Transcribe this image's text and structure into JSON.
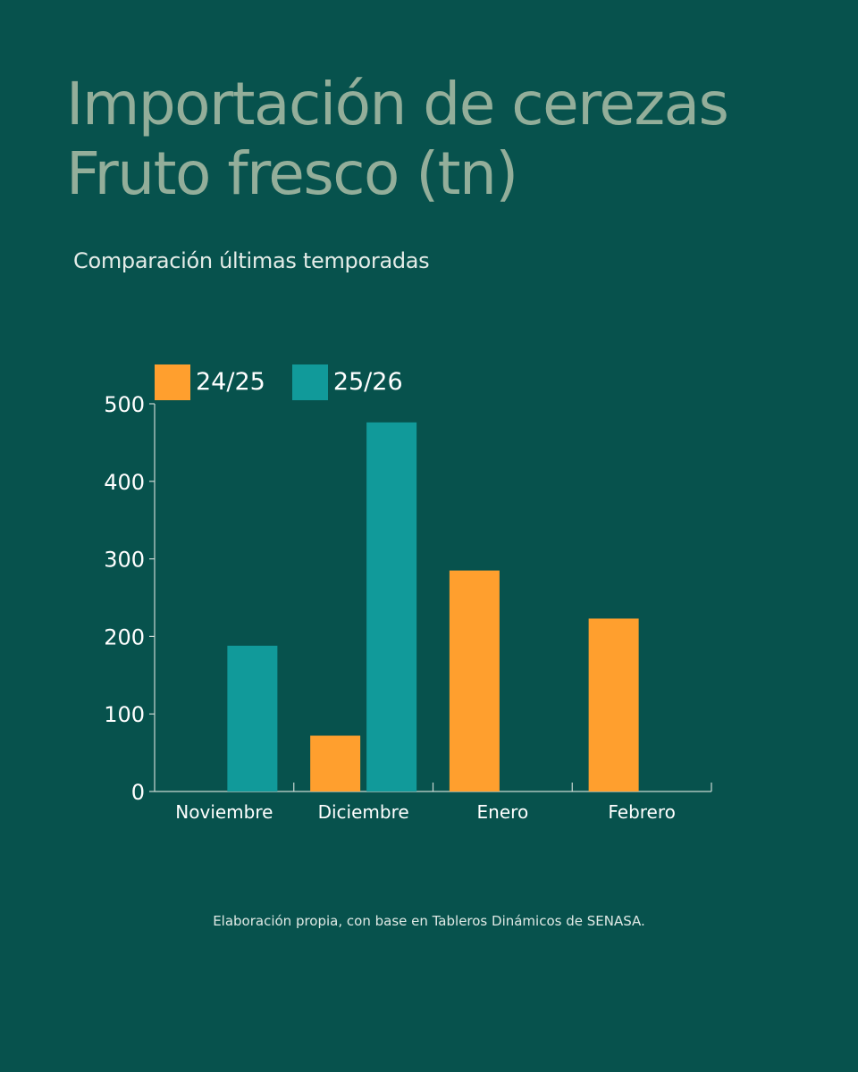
{
  "page": {
    "title_line1": "Importación de cerezas",
    "title_line2": "Fruto fresco (tn)",
    "subtitle": "Comparación últimas temporadas",
    "source_note": "Elaboración propia, con base en Tableros Dinámicos de SENASA."
  },
  "colors": {
    "background": "#07524d",
    "title": "#93ae9a",
    "series_24_25": "#ff9f2e",
    "series_25_26": "#119a9a"
  },
  "chart_data": {
    "type": "bar",
    "title": "Importación de cerezas Fruto fresco (tn)",
    "subtitle": "Comparación últimas temporadas",
    "categories": [
      "Noviembre",
      "Diciembre",
      "Enero",
      "Febrero"
    ],
    "series": [
      {
        "name": "24/25",
        "color": "#ff9f2e",
        "values": [
          0,
          72,
          285,
          223
        ]
      },
      {
        "name": "25/26",
        "color": "#119a9a",
        "values": [
          188,
          476,
          0,
          0
        ]
      }
    ],
    "ylim": [
      0,
      500
    ],
    "yticks": [
      0,
      100,
      200,
      300,
      400,
      500
    ],
    "xlabel": "",
    "ylabel": "",
    "legend_position": "top-left",
    "grid": false
  }
}
